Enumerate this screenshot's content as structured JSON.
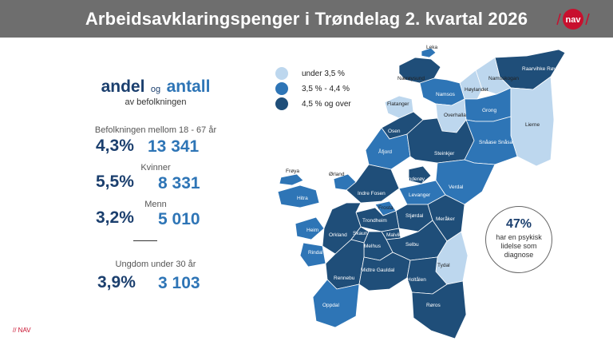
{
  "title": "Arbeidsavklaringspenger i Trøndelag 2. kvartal 2026",
  "logo_text": "nav",
  "heading": {
    "andel": "andel",
    "og": "og",
    "antall": "antall",
    "sub": "av befolkningen"
  },
  "stats": [
    {
      "label": "Befolkningen mellom 18 - 67 år",
      "percent": "4,3%",
      "count": "13 341"
    },
    {
      "label": "Kvinner",
      "percent": "5,5%",
      "count": "8 331"
    },
    {
      "label": "Menn",
      "percent": "3,2%",
      "count": "5 010"
    },
    {
      "label": "Ungdom under 30 år",
      "percent": "3,9%",
      "count": "3 103"
    }
  ],
  "legend": [
    {
      "label": "under 3,5 %",
      "color": "#bdd7ee"
    },
    {
      "label": "3,5 % - 4,4 %",
      "color": "#2e75b6"
    },
    {
      "label": "4,5 % og over",
      "color": "#1f4e79"
    }
  ],
  "bubble": {
    "percent": "47%",
    "text": "har en psykisk lidelse som diagnose"
  },
  "footer": "// NAV",
  "colors": {
    "light": "#bdd7ee",
    "mid": "#2e75b6",
    "dark": "#1f4e79",
    "titlebar": "#6e6e6e",
    "accent": "#c8102e"
  },
  "municipalities": [
    {
      "name": "Leka",
      "class": "mid"
    },
    {
      "name": "Nærøysund",
      "class": "dark"
    },
    {
      "name": "Raarvihke Røyrvik",
      "class": "dark"
    },
    {
      "name": "Namsskogan",
      "class": "light"
    },
    {
      "name": "Høylandet",
      "class": "light"
    },
    {
      "name": "Namsos",
      "class": "mid"
    },
    {
      "name": "Flatanger",
      "class": "light"
    },
    {
      "name": "Overhalla",
      "class": "light"
    },
    {
      "name": "Grong",
      "class": "mid"
    },
    {
      "name": "Lierne",
      "class": "light"
    },
    {
      "name": "Osen",
      "class": "dark"
    },
    {
      "name": "Åfjord",
      "class": "mid"
    },
    {
      "name": "Steinkjer",
      "class": "dark"
    },
    {
      "name": "Snåase Snåsa",
      "class": "mid"
    },
    {
      "name": "Frøya",
      "class": "mid"
    },
    {
      "name": "Ørland",
      "class": "mid"
    },
    {
      "name": "Inderøy",
      "class": "dark"
    },
    {
      "name": "Verdal",
      "class": "mid"
    },
    {
      "name": "Hitra",
      "class": "mid"
    },
    {
      "name": "Indre Fosen",
      "class": "dark"
    },
    {
      "name": "Levanger",
      "class": "mid"
    },
    {
      "name": "Frosta",
      "class": "mid"
    },
    {
      "name": "Stjørdal",
      "class": "dark"
    },
    {
      "name": "Meråker",
      "class": "dark"
    },
    {
      "name": "Trondheim",
      "class": "dark"
    },
    {
      "name": "Heim",
      "class": "mid"
    },
    {
      "name": "Orkland",
      "class": "dark"
    },
    {
      "name": "Skaun",
      "class": "dark"
    },
    {
      "name": "Malvik",
      "class": "dark"
    },
    {
      "name": "Selbu",
      "class": "dark"
    },
    {
      "name": "Rindal",
      "class": "mid"
    },
    {
      "name": "Melhus",
      "class": "dark"
    },
    {
      "name": "Tydal",
      "class": "light"
    },
    {
      "name": "Rennebu",
      "class": "dark"
    },
    {
      "name": "Midtre Gauldal",
      "class": "dark"
    },
    {
      "name": "Holtålen",
      "class": "dark"
    },
    {
      "name": "Oppdal",
      "class": "mid"
    },
    {
      "name": "Røros",
      "class": "dark"
    }
  ]
}
